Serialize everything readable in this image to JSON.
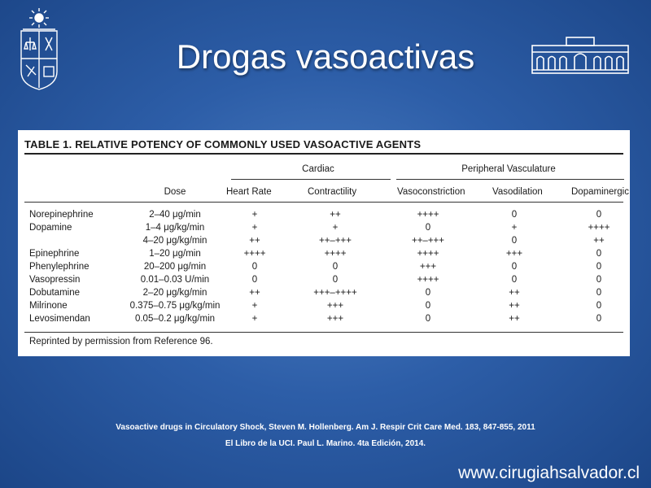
{
  "slide": {
    "title": "Drogas vasoactivas",
    "table_caption": "TABLE 1. RELATIVE POTENCY OF COMMONLY USED VASOACTIVE AGENTS",
    "groups": [
      "Cardiac",
      "Peripheral Vasculature"
    ],
    "columns": [
      "Dose",
      "Heart Rate",
      "Contractility",
      "Vasoconstriction",
      "Vasodilation",
      "Dopaminergic"
    ],
    "rows": [
      {
        "agent": "Norepinephrine",
        "dose": "2–40 μg/min",
        "hr": "+",
        "contract": "++",
        "vasocon": "++++",
        "vasodil": "0",
        "dopa": "0"
      },
      {
        "agent": "Dopamine",
        "dose": "1–4 μg/kg/min",
        "hr": "+",
        "contract": "+",
        "vasocon": "0",
        "vasodil": "+",
        "dopa": "++++"
      },
      {
        "agent": "",
        "dose": "4–20 μg/kg/min",
        "hr": "++",
        "contract": "++–+++",
        "vasocon": "++–+++",
        "vasodil": "0",
        "dopa": "++"
      },
      {
        "agent": "Epinephrine",
        "dose": "1–20 μg/min",
        "hr": "++++",
        "contract": "++++",
        "vasocon": "++++",
        "vasodil": "+++",
        "dopa": "0"
      },
      {
        "agent": "Phenylephrine",
        "dose": "20–200 μg/min",
        "hr": "0",
        "contract": "0",
        "vasocon": "+++",
        "vasodil": "0",
        "dopa": "0"
      },
      {
        "agent": "Vasopressin",
        "dose": "0.01–0.03 U/min",
        "hr": "0",
        "contract": "0",
        "vasocon": "++++",
        "vasodil": "0",
        "dopa": "0"
      },
      {
        "agent": "Dobutamine",
        "dose": "2–20 μg/kg/min",
        "hr": "++",
        "contract": "+++–++++",
        "vasocon": "0",
        "vasodil": "++",
        "dopa": "0"
      },
      {
        "agent": "Milrinone",
        "dose": "0.375–0.75 μg/kg/min",
        "hr": "+",
        "contract": "+++",
        "vasocon": "0",
        "vasodil": "++",
        "dopa": "0"
      },
      {
        "agent": "Levosimendan",
        "dose": "0.05–0.2 μg/kg/min",
        "hr": "+",
        "contract": "+++",
        "vasocon": "0",
        "vasodil": "++",
        "dopa": "0"
      }
    ],
    "footnote": "Reprinted by permission from Reference 96.",
    "references": [
      "Vasoactive drugs in Circulatory Shock, Steven M. Hollenberg. Am J. Respir Crit Care Med. 183, 847-855, 2011",
      "El Libro de la UCI. Paul L. Marino. 4ta Edición, 2014."
    ],
    "url": "www.cirugiahsalvador.cl",
    "icons": {
      "left_logo": "university-crest-icon",
      "right_logo": "hospital-building-icon"
    },
    "colors": {
      "background": "#2d5ea8",
      "text": "#ffffff",
      "panel": "#ffffff"
    }
  }
}
